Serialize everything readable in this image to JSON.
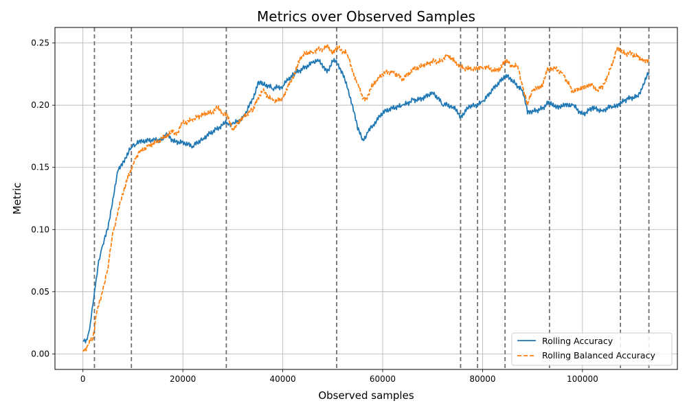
{
  "chart_data": {
    "type": "line",
    "title": "Metrics over Observed Samples",
    "xlabel": "Observed samples",
    "ylabel": "Metric",
    "xlim": [
      -5600,
      119000
    ],
    "ylim": [
      -0.0125,
      0.2625
    ],
    "xticks": [
      0,
      20000,
      40000,
      60000,
      80000,
      100000
    ],
    "yticks": [
      0.0,
      0.05,
      0.1,
      0.15,
      0.2,
      0.25
    ],
    "ytick_labels": [
      "0.00",
      "0.05",
      "0.10",
      "0.15",
      "0.20",
      "0.25"
    ],
    "grid": true,
    "legend_position": "lower right",
    "vlines": [
      2300,
      9700,
      28700,
      50800,
      75600,
      79000,
      84500,
      93400,
      107600,
      113300
    ],
    "series": [
      {
        "name": "Rolling Accuracy",
        "color": "#1f77b4",
        "style": "solid",
        "x": [
          0,
          500,
          1000,
          1500,
          2000,
          2500,
          3000,
          3500,
          4000,
          5000,
          6000,
          7000,
          8000,
          9000,
          9700,
          10500,
          12000,
          14000,
          16000,
          17000,
          18000,
          20000,
          22000,
          24000,
          26000,
          28000,
          29000,
          30000,
          32000,
          34000,
          35000,
          36000,
          38000,
          40000,
          41000,
          42000,
          44000,
          46000,
          47000,
          48000,
          49000,
          50000,
          51000,
          52000,
          53000,
          54000,
          55000,
          56000,
          57000,
          58000,
          60000,
          62000,
          64000,
          66000,
          68000,
          70000,
          72000,
          74000,
          75600,
          77000,
          78000,
          80000,
          82000,
          84000,
          85000,
          86000,
          88000,
          89000,
          90000,
          92000,
          93400,
          95000,
          98000,
          100000,
          102000,
          104000,
          106000,
          107600,
          109000,
          111000,
          112000,
          113300
        ],
        "y": [
          0.01,
          0.009,
          0.015,
          0.025,
          0.04,
          0.055,
          0.07,
          0.08,
          0.088,
          0.1,
          0.125,
          0.147,
          0.155,
          0.16,
          0.166,
          0.168,
          0.17,
          0.171,
          0.172,
          0.176,
          0.172,
          0.171,
          0.167,
          0.172,
          0.178,
          0.184,
          0.185,
          0.186,
          0.19,
          0.205,
          0.218,
          0.216,
          0.213,
          0.215,
          0.22,
          0.226,
          0.23,
          0.234,
          0.237,
          0.23,
          0.229,
          0.235,
          0.233,
          0.226,
          0.213,
          0.2,
          0.18,
          0.173,
          0.178,
          0.183,
          0.193,
          0.197,
          0.2,
          0.205,
          0.206,
          0.21,
          0.2,
          0.198,
          0.19,
          0.197,
          0.2,
          0.203,
          0.212,
          0.22,
          0.224,
          0.219,
          0.212,
          0.193,
          0.196,
          0.198,
          0.202,
          0.2,
          0.2,
          0.193,
          0.199,
          0.196,
          0.199,
          0.203,
          0.206,
          0.207,
          0.214,
          0.226
        ]
      },
      {
        "name": "Rolling Balanced Accuracy",
        "color": "#ff7f0e",
        "style": "dashed",
        "x": [
          0,
          500,
          1000,
          1500,
          2000,
          2500,
          3000,
          4000,
          5000,
          6000,
          7000,
          8000,
          9000,
          9700,
          10500,
          11500,
          13000,
          15000,
          17000,
          18000,
          19000,
          20000,
          22000,
          24000,
          26000,
          27000,
          28000,
          28700,
          30000,
          32000,
          34000,
          35000,
          36000,
          38000,
          40000,
          41000,
          42000,
          43000,
          44000,
          46000,
          48000,
          49000,
          50000,
          51000,
          53000,
          54000,
          55000,
          56000,
          57000,
          58000,
          60000,
          62000,
          64000,
          66000,
          68000,
          70000,
          72000,
          73000,
          75000,
          75600,
          77000,
          78000,
          80000,
          82000,
          83000,
          84000,
          85000,
          86000,
          87000,
          88000,
          89000,
          90000,
          92000,
          93000,
          94000,
          96000,
          98000,
          100000,
          102000,
          103000,
          104000,
          106000,
          107000,
          108000,
          110000,
          112000,
          113300
        ],
        "y": [
          0.002,
          0.005,
          0.007,
          0.01,
          0.012,
          0.028,
          0.038,
          0.052,
          0.068,
          0.098,
          0.115,
          0.128,
          0.143,
          0.147,
          0.157,
          0.163,
          0.167,
          0.17,
          0.175,
          0.18,
          0.178,
          0.185,
          0.187,
          0.192,
          0.195,
          0.197,
          0.194,
          0.193,
          0.181,
          0.19,
          0.195,
          0.206,
          0.211,
          0.204,
          0.206,
          0.215,
          0.222,
          0.232,
          0.24,
          0.242,
          0.245,
          0.248,
          0.242,
          0.245,
          0.24,
          0.226,
          0.218,
          0.205,
          0.208,
          0.215,
          0.225,
          0.228,
          0.222,
          0.229,
          0.231,
          0.234,
          0.235,
          0.24,
          0.232,
          0.23,
          0.228,
          0.229,
          0.23,
          0.228,
          0.229,
          0.232,
          0.235,
          0.232,
          0.232,
          0.215,
          0.2,
          0.212,
          0.215,
          0.23,
          0.229,
          0.226,
          0.212,
          0.215,
          0.217,
          0.212,
          0.213,
          0.232,
          0.247,
          0.242,
          0.242,
          0.238,
          0.235
        ]
      }
    ]
  }
}
